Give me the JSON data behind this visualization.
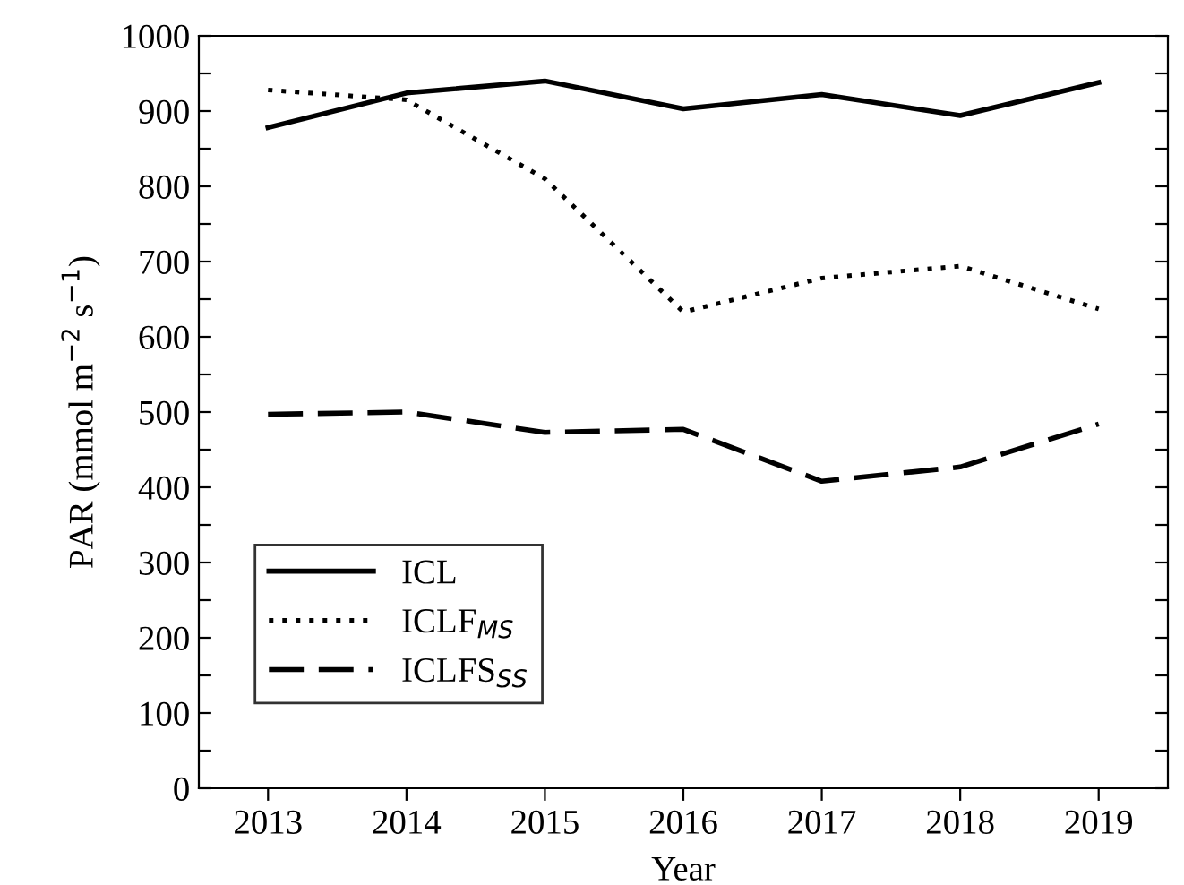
{
  "chart_data": {
    "type": "line",
    "xlabel": "Year",
    "ylabel": "PAR (mmol m$^{−2}$ s$^{−1}$)",
    "x": [
      2013,
      2014,
      2015,
      2016,
      2017,
      2018,
      2019
    ],
    "series": [
      {
        "name": "ICL",
        "color": "#000000",
        "line_style": "solid",
        "values": [
          878,
          924,
          940,
          903,
          922,
          894,
          938
        ]
      },
      {
        "name": "ICLF$_{MS}$",
        "color": "#000000",
        "line_style": "dotted",
        "values": [
          928,
          915,
          810,
          633,
          678,
          694,
          637
        ]
      },
      {
        "name": "ICLFS$_{SS}$",
        "color": "#000000",
        "line_style": "dashed",
        "values": [
          497,
          500,
          473,
          477,
          408,
          427,
          484
        ]
      }
    ],
    "xlim": [
      2012.5,
      2019.5
    ],
    "xticks": [
      2013,
      2014,
      2015,
      2016,
      2017,
      2018,
      2019
    ],
    "ylim": [
      0,
      1000
    ],
    "yticks": [
      0,
      {
        "value": 50,
        "label": null
      },
      100,
      {
        "value": 150,
        "label": null
      },
      200,
      {
        "value": 250,
        "label": null
      },
      300,
      {
        "value": 350,
        "label": null
      },
      400,
      {
        "value": 450,
        "label": null
      },
      500,
      {
        "value": 550,
        "label": null
      },
      600,
      {
        "value": 650,
        "label": null
      },
      700,
      {
        "value": 750,
        "label": null
      },
      800,
      {
        "value": 850,
        "label": null
      },
      900,
      {
        "value": 950,
        "label": null
      },
      1000
    ],
    "grid": false,
    "legend": "bottom left",
    "marker": "none"
  }
}
